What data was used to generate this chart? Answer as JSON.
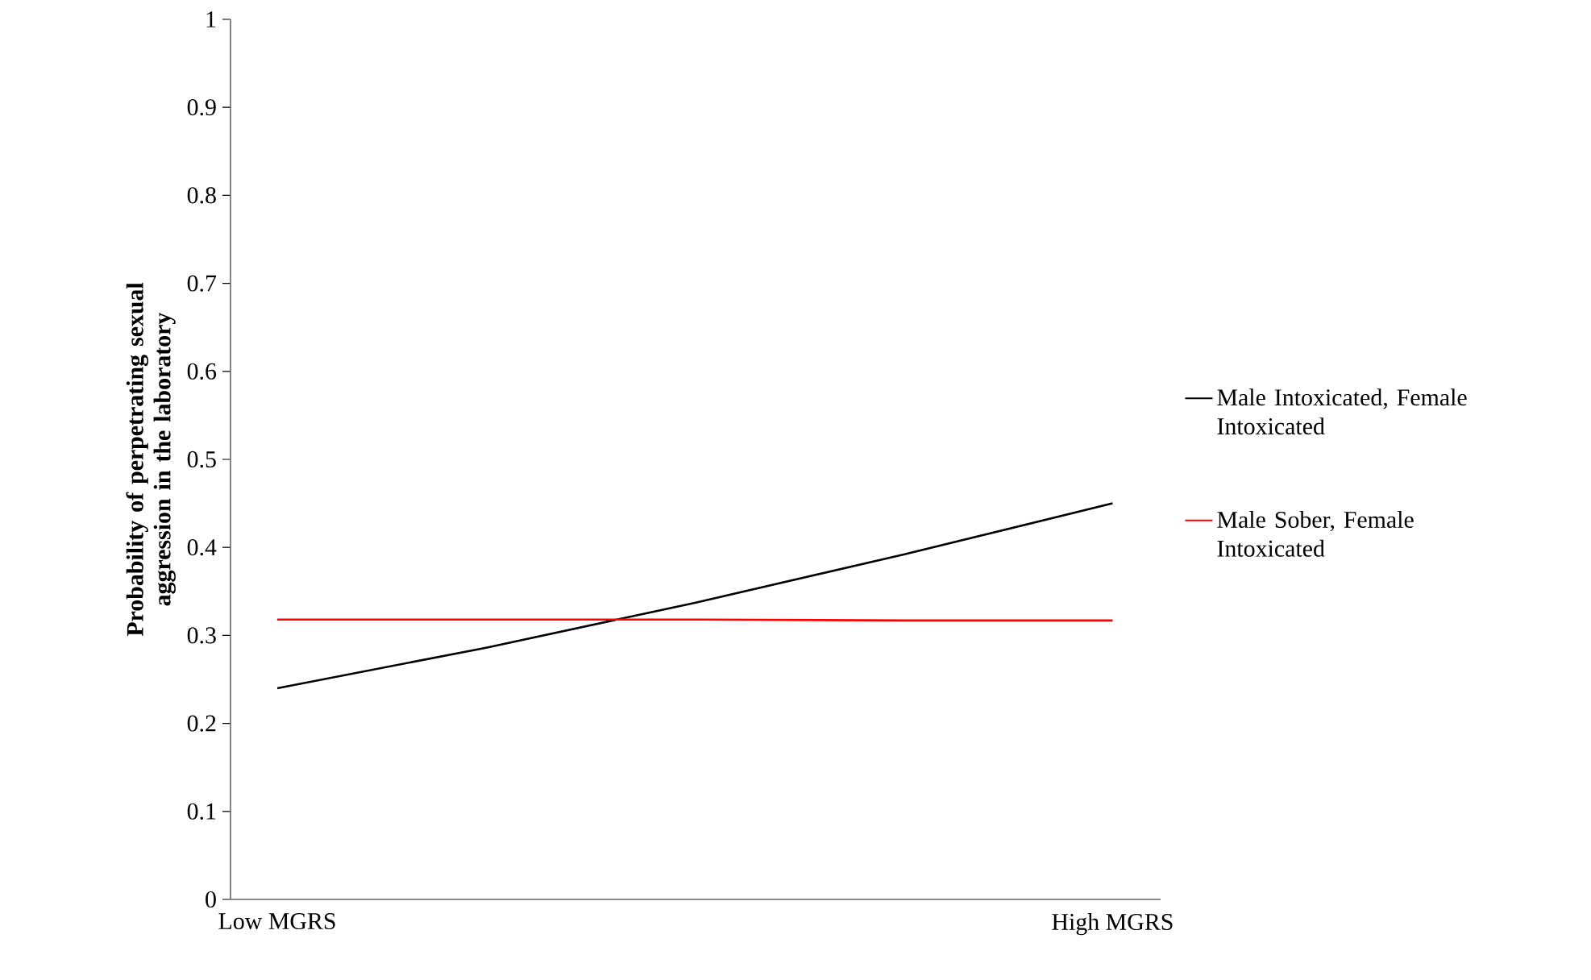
{
  "chart_data": {
    "type": "line",
    "ylabel": "Probability of perpetrating sexual aggression in the laboratory",
    "categories": [
      "Low MGRS",
      null,
      null,
      null,
      "High MGRS"
    ],
    "series": [
      {
        "name": "Male Intoxicated, Female Intoxicated",
        "color": "#000000",
        "values": [
          0.24,
          0.286,
          0.337,
          0.392,
          0.45
        ]
      },
      {
        "name": "Male Sober, Female Intoxicated",
        "color": "#ff0000",
        "values": [
          0.318,
          0.318,
          0.318,
          0.317,
          0.317
        ]
      }
    ],
    "ylim": [
      0,
      1
    ],
    "yticks": [
      0,
      0.1,
      0.2,
      0.3,
      0.4,
      0.5,
      0.6,
      0.7,
      0.8,
      0.9,
      1
    ],
    "grid": false,
    "legend": "right",
    "marker": "none",
    "line_style": "solid"
  }
}
